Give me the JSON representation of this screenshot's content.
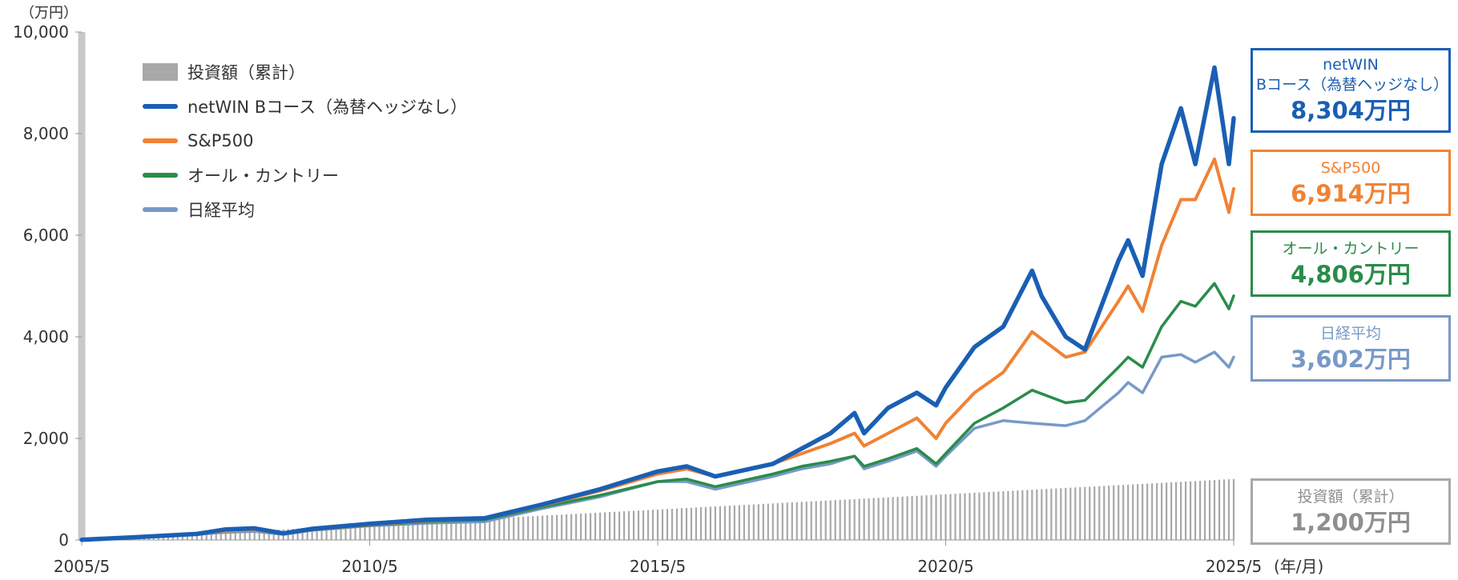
{
  "y_unit": "（万円）",
  "x_unit": "(年/月)",
  "colors": {
    "netwin": "#1a5fb4",
    "sp500": "#f08234",
    "allcountry": "#2a8c4a",
    "nikkei": "#7899c8",
    "investment": "#a8a8a8"
  },
  "legend": [
    {
      "label": "投資額（累計）",
      "type": "bar",
      "color_key": "investment"
    },
    {
      "label": "netWIN Bコース（為替ヘッジなし）",
      "type": "line",
      "color_key": "netwin"
    },
    {
      "label": "S&P500",
      "type": "line",
      "color_key": "sp500"
    },
    {
      "label": "オール・カントリー",
      "type": "line",
      "color_key": "allcountry"
    },
    {
      "label": "日経平均",
      "type": "line",
      "color_key": "nikkei"
    }
  ],
  "callouts": [
    {
      "name_lines": [
        "netWIN",
        "Bコース（為替ヘッジなし）"
      ],
      "value": "8,304万円",
      "color_key": "netwin"
    },
    {
      "name_lines": [
        "S&P500"
      ],
      "value": "6,914万円",
      "color_key": "sp500"
    },
    {
      "name_lines": [
        "オール・カントリー"
      ],
      "value": "4,806万円",
      "color_key": "allcountry"
    },
    {
      "name_lines": [
        "日経平均"
      ],
      "value": "3,602万円",
      "color_key": "nikkei"
    },
    {
      "name_lines": [
        "投資額（累計）"
      ],
      "value": "1,200万円",
      "color_key": "investment"
    }
  ],
  "chart_data": {
    "type": "line",
    "x_start": "2005/5",
    "x_end": "2025/5",
    "x_ticks": [
      "2005/5",
      "2010/5",
      "2015/5",
      "2020/5",
      "2025/5"
    ],
    "y_ticks": [
      "0",
      "2,000",
      "4,000",
      "6,000",
      "8,000",
      "10,000"
    ],
    "ylim": [
      0,
      10000
    ],
    "grid": false,
    "legend_position": "top-left",
    "investment_bars": {
      "name": "投資額（累計）",
      "monthly_amount": 5,
      "final_value": 1200
    },
    "series": [
      {
        "name": "netWIN Bコース（為替ヘッジなし）",
        "color_key": "netwin",
        "points": [
          [
            "2005/5",
            5
          ],
          [
            "2006/5",
            60
          ],
          [
            "2007/5",
            120
          ],
          [
            "2007/11",
            210
          ],
          [
            "2008/5",
            230
          ],
          [
            "2008/11",
            130
          ],
          [
            "2009/5",
            220
          ],
          [
            "2010/5",
            320
          ],
          [
            "2011/5",
            400
          ],
          [
            "2012/5",
            430
          ],
          [
            "2013/5",
            700
          ],
          [
            "2014/5",
            1000
          ],
          [
            "2015/5",
            1350
          ],
          [
            "2015/11",
            1450
          ],
          [
            "2016/5",
            1250
          ],
          [
            "2017/5",
            1500
          ],
          [
            "2017/11",
            1800
          ],
          [
            "2018/5",
            2100
          ],
          [
            "2018/10",
            2500
          ],
          [
            "2018/12",
            2100
          ],
          [
            "2019/5",
            2600
          ],
          [
            "2019/11",
            2900
          ],
          [
            "2020/3",
            2650
          ],
          [
            "2020/5",
            3000
          ],
          [
            "2020/11",
            3800
          ],
          [
            "2021/5",
            4200
          ],
          [
            "2021/11",
            5300
          ],
          [
            "2022/1",
            4800
          ],
          [
            "2022/6",
            4000
          ],
          [
            "2022/10",
            3750
          ],
          [
            "2023/5",
            5500
          ],
          [
            "2023/7",
            5900
          ],
          [
            "2023/10",
            5200
          ],
          [
            "2024/2",
            7400
          ],
          [
            "2024/6",
            8500
          ],
          [
            "2024/9",
            7400
          ],
          [
            "2025/1",
            9300
          ],
          [
            "2025/4",
            7400
          ],
          [
            "2025/5",
            8304
          ]
        ]
      },
      {
        "name": "S&P500",
        "color_key": "sp500",
        "points": [
          [
            "2005/5",
            5
          ],
          [
            "2006/5",
            60
          ],
          [
            "2007/5",
            120
          ],
          [
            "2007/11",
            180
          ],
          [
            "2008/5",
            200
          ],
          [
            "2008/11",
            130
          ],
          [
            "2009/5",
            210
          ],
          [
            "2010/5",
            300
          ],
          [
            "2011/5",
            380
          ],
          [
            "2012/5",
            420
          ],
          [
            "2013/5",
            680
          ],
          [
            "2014/5",
            970
          ],
          [
            "2015/5",
            1300
          ],
          [
            "2015/11",
            1400
          ],
          [
            "2016/5",
            1250
          ],
          [
            "2017/5",
            1500
          ],
          [
            "2017/11",
            1700
          ],
          [
            "2018/5",
            1900
          ],
          [
            "2018/10",
            2100
          ],
          [
            "2018/12",
            1850
          ],
          [
            "2019/5",
            2100
          ],
          [
            "2019/11",
            2400
          ],
          [
            "2020/3",
            2000
          ],
          [
            "2020/5",
            2300
          ],
          [
            "2020/11",
            2900
          ],
          [
            "2021/5",
            3300
          ],
          [
            "2021/11",
            4100
          ],
          [
            "2022/6",
            3600
          ],
          [
            "2022/10",
            3700
          ],
          [
            "2023/5",
            4700
          ],
          [
            "2023/7",
            5000
          ],
          [
            "2023/10",
            4500
          ],
          [
            "2024/2",
            5800
          ],
          [
            "2024/6",
            6700
          ],
          [
            "2024/9",
            6700
          ],
          [
            "2025/1",
            7500
          ],
          [
            "2025/4",
            6450
          ],
          [
            "2025/5",
            6914
          ]
        ]
      },
      {
        "name": "オール・カントリー",
        "color_key": "allcountry",
        "points": [
          [
            "2005/5",
            5
          ],
          [
            "2006/5",
            60
          ],
          [
            "2007/5",
            120
          ],
          [
            "2007/11",
            190
          ],
          [
            "2008/5",
            200
          ],
          [
            "2008/11",
            120
          ],
          [
            "2009/5",
            200
          ],
          [
            "2010/5",
            290
          ],
          [
            "2011/5",
            360
          ],
          [
            "2012/5",
            400
          ],
          [
            "2013/5",
            650
          ],
          [
            "2014/5",
            880
          ],
          [
            "2015/5",
            1150
          ],
          [
            "2015/11",
            1200
          ],
          [
            "2016/5",
            1050
          ],
          [
            "2017/5",
            1300
          ],
          [
            "2017/11",
            1450
          ],
          [
            "2018/5",
            1550
          ],
          [
            "2018/10",
            1650
          ],
          [
            "2018/12",
            1450
          ],
          [
            "2019/5",
            1600
          ],
          [
            "2019/11",
            1800
          ],
          [
            "2020/3",
            1500
          ],
          [
            "2020/5",
            1700
          ],
          [
            "2020/11",
            2300
          ],
          [
            "2021/5",
            2600
          ],
          [
            "2021/11",
            2950
          ],
          [
            "2022/6",
            2700
          ],
          [
            "2022/10",
            2750
          ],
          [
            "2023/5",
            3400
          ],
          [
            "2023/7",
            3600
          ],
          [
            "2023/10",
            3400
          ],
          [
            "2024/2",
            4200
          ],
          [
            "2024/6",
            4700
          ],
          [
            "2024/9",
            4600
          ],
          [
            "2025/1",
            5050
          ],
          [
            "2025/4",
            4550
          ],
          [
            "2025/5",
            4806
          ]
        ]
      },
      {
        "name": "日経平均",
        "color_key": "nikkei",
        "points": [
          [
            "2005/5",
            5
          ],
          [
            "2006/5",
            60
          ],
          [
            "2007/5",
            110
          ],
          [
            "2007/11",
            150
          ],
          [
            "2008/5",
            170
          ],
          [
            "2008/11",
            110
          ],
          [
            "2009/5",
            190
          ],
          [
            "2010/5",
            280
          ],
          [
            "2011/5",
            330
          ],
          [
            "2012/5",
            360
          ],
          [
            "2013/5",
            620
          ],
          [
            "2014/5",
            850
          ],
          [
            "2015/5",
            1150
          ],
          [
            "2015/11",
            1150
          ],
          [
            "2016/5",
            1000
          ],
          [
            "2017/5",
            1250
          ],
          [
            "2017/11",
            1400
          ],
          [
            "2018/5",
            1500
          ],
          [
            "2018/10",
            1650
          ],
          [
            "2018/12",
            1400
          ],
          [
            "2019/5",
            1550
          ],
          [
            "2019/11",
            1750
          ],
          [
            "2020/3",
            1450
          ],
          [
            "2020/5",
            1650
          ],
          [
            "2020/11",
            2200
          ],
          [
            "2021/5",
            2350
          ],
          [
            "2021/11",
            2300
          ],
          [
            "2022/6",
            2250
          ],
          [
            "2022/10",
            2350
          ],
          [
            "2023/5",
            2900
          ],
          [
            "2023/7",
            3100
          ],
          [
            "2023/10",
            2900
          ],
          [
            "2024/2",
            3600
          ],
          [
            "2024/6",
            3650
          ],
          [
            "2024/9",
            3500
          ],
          [
            "2025/1",
            3700
          ],
          [
            "2025/4",
            3400
          ],
          [
            "2025/5",
            3602
          ]
        ]
      }
    ]
  }
}
